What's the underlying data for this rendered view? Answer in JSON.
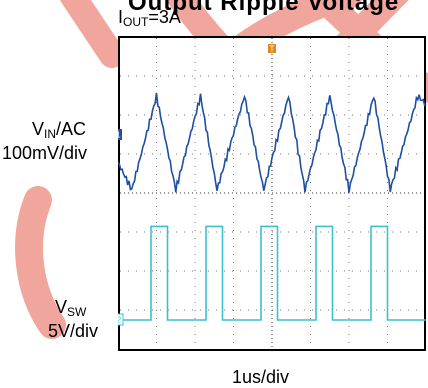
{
  "title_partial": "Output Ripple Voltage",
  "conditions": {
    "label": "I",
    "subscript": "OUT",
    "value": "=3A"
  },
  "channels": [
    {
      "name": "V",
      "subscript": "IN",
      "suffix": "/AC",
      "scale": "100mV/div",
      "marker": "1",
      "color": "#1f4fa0"
    },
    {
      "name": "V",
      "subscript": "SW",
      "suffix": "",
      "scale": "5V/div",
      "marker": "2",
      "color": "#3cbfd0"
    }
  ],
  "timebase": "1us/div",
  "trigger_marker": "T",
  "trigger_color": "#e08a1e",
  "watermark_color": "#f0a69c",
  "chart_data": {
    "type": "line",
    "x_unit": "us",
    "xlim": [
      -2.6,
      3.0
    ],
    "grid": true,
    "series": [
      {
        "name": "V_IN/AC",
        "x": [
          -2.6,
          -2.35,
          -1.9,
          -1.55,
          -1.1,
          -0.8,
          -0.3,
          0.05,
          0.5,
          0.8,
          1.25,
          1.6,
          2.05,
          2.35,
          2.85,
          3.0
        ],
        "y": [
          -0.05,
          -0.12,
          0.12,
          -0.12,
          0.12,
          -0.12,
          0.12,
          -0.12,
          0.12,
          -0.12,
          0.12,
          -0.12,
          0.12,
          -0.12,
          0.12,
          0.1
        ],
        "unit": "V"
      },
      {
        "name": "V_SW",
        "x": [
          -2.6,
          -2.0,
          -2.0,
          -1.7,
          -1.7,
          -1.0,
          -1.0,
          -0.7,
          -0.7,
          0.0,
          0.0,
          0.3,
          0.3,
          1.0,
          1.0,
          1.3,
          1.3,
          2.0,
          2.0,
          2.3,
          2.3,
          3.0
        ],
        "y": [
          0,
          0,
          12,
          12,
          0,
          0,
          12,
          12,
          0,
          0,
          12,
          12,
          0,
          0,
          12,
          12,
          0,
          0,
          12,
          12,
          0,
          0
        ],
        "unit": "V"
      }
    ]
  }
}
